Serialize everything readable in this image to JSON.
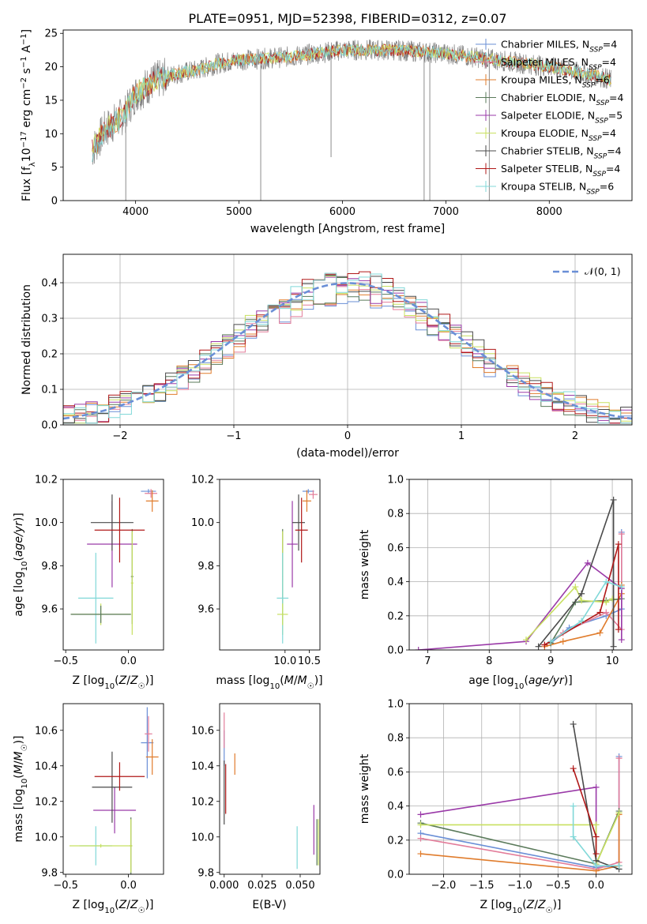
{
  "colors": {
    "Chabrier MILES": "#6a8fd6",
    "Salpeter MILES": "#e37d9a",
    "Kroupa MILES": "#e07c2c",
    "Chabrier ELODIE": "#5a7a5a",
    "Salpeter ELODIE": "#9a3aa8",
    "Kroupa ELODIE": "#c8e060",
    "Chabrier STELIB": "#4a4a4a",
    "Salpeter STELIB": "#b01818",
    "Kroupa STELIB": "#80d8d8",
    "data": "#808080",
    "gauss": "#6a8fd6",
    "grid": "#b0b0b0"
  },
  "chart_data": [
    {
      "id": "spectrum",
      "type": "line",
      "title": "PLATE=0951, MJD=52398, FIBERID=0312, z=0.07",
      "xlabel": "wavelength [Angstrom, rest frame]",
      "ylabel": "Flux [f_λ 10^-17 erg cm^-2 s^-1 A^-1]",
      "xlim": [
        3300,
        8800
      ],
      "ylim": [
        0,
        25.5
      ],
      "xticks": [
        "4000",
        "5000",
        "6000",
        "7000",
        "8000"
      ],
      "yticks": [
        "0",
        "5",
        "10",
        "15",
        "20",
        "25"
      ],
      "legend": [
        {
          "name": "Chabrier MILES",
          "nssp": "4"
        },
        {
          "name": "Salpeter MILES",
          "nssp": "4"
        },
        {
          "name": "Kroupa MILES",
          "nssp": "6"
        },
        {
          "name": "Chabrier ELODIE",
          "nssp": "4"
        },
        {
          "name": "Salpeter ELODIE",
          "nssp": "5"
        },
        {
          "name": "Kroupa ELODIE",
          "nssp": "4"
        },
        {
          "name": "Chabrier STELIB",
          "nssp": "4"
        },
        {
          "name": "Salpeter STELIB",
          "nssp": "4"
        },
        {
          "name": "Kroupa STELIB",
          "nssp": "6"
        }
      ],
      "legend_loc": "right",
      "continuum_knots": [
        [
          3580,
          7.5
        ],
        [
          3700,
          10.5
        ],
        [
          3900,
          13
        ],
        [
          4000,
          16
        ],
        [
          4200,
          18
        ],
        [
          4400,
          19
        ],
        [
          4600,
          19.5
        ],
        [
          4800,
          20.5
        ],
        [
          5000,
          21
        ],
        [
          5500,
          21.5
        ],
        [
          6000,
          22.5
        ],
        [
          6500,
          22.5
        ],
        [
          7000,
          22
        ],
        [
          7500,
          21
        ],
        [
          8000,
          20
        ],
        [
          8500,
          18.5
        ],
        [
          8600,
          18
        ]
      ],
      "spikes": [
        [
          3905,
          0
        ],
        [
          5210,
          0
        ],
        [
          5890,
          6.5
        ],
        [
          6790,
          0
        ],
        [
          6845,
          0
        ],
        [
          7420,
          0
        ]
      ]
    },
    {
      "id": "residuals",
      "type": "histogram",
      "xlabel": "(data-model)/error",
      "ylabel": "Normed distribution",
      "xlim": [
        -2.5,
        2.5
      ],
      "ylim": [
        0,
        0.48
      ],
      "xticks": [
        "−2",
        "−1",
        "0",
        "1",
        "2"
      ],
      "yticks": [
        "0.0",
        "0.1",
        "0.2",
        "0.3",
        "0.4"
      ],
      "grid": true,
      "legend": "𝒩(0, 1)",
      "legend_loc": "top-right",
      "bin_width": 0.1
    },
    {
      "id": "age_vs_Z",
      "type": "errorbar",
      "xlabel": "Z [log10(Z/Z☉)]",
      "ylabel": "age  [log10(age/yr)]",
      "xlim": [
        -0.52,
        0.28
      ],
      "ylim": [
        9.41,
        10.2
      ],
      "xticks": [
        "−0.5",
        "0.0"
      ],
      "yticks": [
        "9.6",
        "9.8",
        "10.0",
        "10.2"
      ],
      "points": [
        {
          "s": "Chabrier MILES",
          "x": 0.16,
          "y": 10.145,
          "xe": 0.06,
          "ye": 0.01
        },
        {
          "s": "Salpeter MILES",
          "x": 0.18,
          "y": 10.135,
          "xe": 0.05,
          "ye": 0.02
        },
        {
          "s": "Kroupa MILES",
          "x": 0.19,
          "y": 10.1,
          "xe": 0.05,
          "ye": 0.05
        },
        {
          "s": "Chabrier ELODIE",
          "x": 0.03,
          "y": 9.75,
          "xe": 0.01,
          "ye": 0.22
        },
        {
          "s": "Salpeter ELODIE",
          "x": -0.13,
          "y": 9.9,
          "xe": 0.2,
          "ye": 0.2
        },
        {
          "s": "Kroupa ELODIE",
          "x": 0.03,
          "y": 9.72,
          "xe": 0.01,
          "ye": 0.24
        },
        {
          "s": "Chabrier STELIB",
          "x": -0.13,
          "y": 10.0,
          "xe": 0.17,
          "ye": 0.13
        },
        {
          "s": "Salpeter STELIB",
          "x": -0.07,
          "y": 9.965,
          "xe": 0.2,
          "ye": 0.15
        },
        {
          "s": "Kroupa STELIB",
          "x": -0.26,
          "y": 9.65,
          "xe": 0.14,
          "ye": 0.21
        },
        {
          "s": "Kroupa ELODIE",
          "x": -0.22,
          "y": 9.575,
          "xe": 0.24,
          "ye": 0.05
        },
        {
          "s": "Chabrier ELODIE",
          "x": -0.22,
          "y": 9.575,
          "xe": 0.24,
          "ye": 0.04
        }
      ]
    },
    {
      "id": "age_vs_mass",
      "type": "errorbar",
      "xlabel": "mass [log10(M/M☉)]",
      "ylabel": "",
      "xlim": [
        8.65,
        10.72
      ],
      "ylim": [
        9.41,
        10.2
      ],
      "xticks": [
        "10.0",
        "10.5"
      ],
      "yticks": [
        "9.6",
        "9.8",
        "10.0",
        "10.2"
      ],
      "points": [
        {
          "s": "Chabrier MILES",
          "x": 10.48,
          "y": 10.145,
          "xe": 0.12,
          "ye": 0.01
        },
        {
          "s": "Salpeter MILES",
          "x": 10.58,
          "y": 10.13,
          "xe": 0.09,
          "ye": 0.02
        },
        {
          "s": "Kroupa MILES",
          "x": 10.45,
          "y": 10.1,
          "xe": 0.09,
          "ye": 0.05
        },
        {
          "s": "Chabrier ELODIE",
          "x": 9.95,
          "y": 9.75,
          "xe": 0.01,
          "ye": 0.22
        },
        {
          "s": "Salpeter ELODIE",
          "x": 10.15,
          "y": 9.9,
          "xe": 0.11,
          "ye": 0.2
        },
        {
          "s": "Kroupa ELODIE",
          "x": 9.95,
          "y": 9.72,
          "xe": 0.01,
          "ye": 0.24
        },
        {
          "s": "Chabrier STELIB",
          "x": 10.28,
          "y": 10.0,
          "xe": 0.13,
          "ye": 0.13
        },
        {
          "s": "Salpeter STELIB",
          "x": 10.34,
          "y": 9.965,
          "xe": 0.13,
          "ye": 0.15
        },
        {
          "s": "Kroupa STELIB",
          "x": 9.95,
          "y": 9.65,
          "xe": 0.12,
          "ye": 0.21
        },
        {
          "s": "Kroupa ELODIE",
          "x": 9.95,
          "y": 9.575,
          "xe": 0.11,
          "ye": 0.05
        }
      ]
    },
    {
      "id": "weight_vs_age",
      "type": "line",
      "xlabel": "age  [log10(age/yr)]",
      "ylabel": "mass weight",
      "xlim": [
        6.7,
        10.32
      ],
      "ylim": [
        0,
        1.0
      ],
      "xticks": [
        "7",
        "8",
        "9",
        "10"
      ],
      "yticks": [
        "0.0",
        "0.2",
        "0.4",
        "0.6",
        "0.8",
        "1.0"
      ],
      "grid": true,
      "series": [
        {
          "name": "Chabrier MILES",
          "x": [
            9.0,
            9.3,
            9.9,
            10.15,
            10.15
          ],
          "y": [
            0.04,
            0.13,
            0.2,
            0.24,
            0.69
          ]
        },
        {
          "name": "Salpeter MILES",
          "x": [
            8.9,
            9.2,
            9.9,
            10.15,
            10.15
          ],
          "y": [
            0.03,
            0.1,
            0.22,
            0.12,
            0.68
          ]
        },
        {
          "name": "Kroupa MILES",
          "x": [
            8.9,
            9.2,
            9.8,
            10.15,
            10.15
          ],
          "y": [
            0.02,
            0.05,
            0.1,
            0.33,
            0.38
          ]
        },
        {
          "name": "Chabrier ELODIE",
          "x": [
            9.0,
            9.4,
            9.9,
            10.15
          ],
          "y": [
            0.04,
            0.28,
            0.29,
            0.3
          ]
        },
        {
          "name": "Salpeter ELODIE",
          "x": [
            6.85,
            8.6,
            9.6,
            10.15,
            10.15
          ],
          "y": [
            0.0,
            0.05,
            0.51,
            0.36,
            0.06
          ]
        },
        {
          "name": "Kroupa ELODIE",
          "x": [
            8.6,
            9.4,
            9.5,
            9.9,
            10.0
          ],
          "y": [
            0.06,
            0.37,
            0.29,
            0.28,
            0.3
          ]
        },
        {
          "name": "Chabrier STELIB",
          "x": [
            8.8,
            9.5,
            10.02,
            10.02
          ],
          "y": [
            0.02,
            0.33,
            0.88,
            0.02
          ]
        },
        {
          "name": "Salpeter STELIB",
          "x": [
            8.9,
            9.8,
            10.1,
            10.1
          ],
          "y": [
            0.03,
            0.22,
            0.62,
            0.12
          ]
        },
        {
          "name": "Kroupa STELIB",
          "x": [
            9.0,
            9.5,
            9.9,
            10.15
          ],
          "y": [
            0.05,
            0.17,
            0.4,
            0.37
          ]
        }
      ]
    },
    {
      "id": "mass_vs_Z",
      "type": "errorbar",
      "xlabel": "Z [log10(Z/Z☉)]",
      "ylabel": "mass [log10(M/M☉)]",
      "xlim": [
        -0.52,
        0.28
      ],
      "ylim": [
        9.79,
        10.75
      ],
      "xticks": [
        "−0.5",
        "0.0"
      ],
      "yticks": [
        "9.8",
        "10.0",
        "10.2",
        "10.4",
        "10.6"
      ],
      "points": [
        {
          "s": "Chabrier MILES",
          "x": 0.15,
          "y": 10.53,
          "xe": 0.05,
          "ye": 0.2
        },
        {
          "s": "Salpeter MILES",
          "x": 0.16,
          "y": 10.58,
          "xe": 0.03,
          "ye": 0.1
        },
        {
          "s": "Kroupa MILES",
          "x": 0.19,
          "y": 10.45,
          "xe": 0.05,
          "ye": 0.1
        },
        {
          "s": "Chabrier ELODIE",
          "x": 0.02,
          "y": 9.95,
          "xe": 0.01,
          "ye": 0.16
        },
        {
          "s": "Salpeter ELODIE",
          "x": -0.11,
          "y": 10.15,
          "xe": 0.17,
          "ye": 0.13
        },
        {
          "s": "Kroupa ELODIE",
          "x": 0.02,
          "y": 9.95,
          "xe": 0.01,
          "ye": 0.15
        },
        {
          "s": "Chabrier STELIB",
          "x": -0.13,
          "y": 10.28,
          "xe": 0.16,
          "ye": 0.2
        },
        {
          "s": "Salpeter STELIB",
          "x": -0.07,
          "y": 10.34,
          "xe": 0.2,
          "ye": 0.08
        },
        {
          "s": "Kroupa STELIB",
          "x": -0.26,
          "y": 9.95,
          "xe": 0.13,
          "ye": 0.11
        },
        {
          "s": "Kroupa ELODIE",
          "x": -0.22,
          "y": 9.95,
          "xe": 0.25,
          "ye": 0.01
        }
      ]
    },
    {
      "id": "mass_vs_ebv",
      "type": "errorbar",
      "xlabel": "E(B-V)",
      "ylabel": "",
      "xlim": [
        -0.003,
        0.063
      ],
      "ylim": [
        9.79,
        10.75
      ],
      "xticks": [
        "0.000",
        "0.025",
        "0.050"
      ],
      "yticks": [
        "9.8",
        "10.0",
        "10.2",
        "10.4",
        "10.6"
      ],
      "points": [
        {
          "s": "Chabrier MILES",
          "x": 0.0,
          "y": 10.5,
          "xe": 0,
          "ye": 0.1
        },
        {
          "s": "Salpeter MILES",
          "x": 0.0,
          "y": 10.6,
          "xe": 0,
          "ye": 0.1
        },
        {
          "s": "Kroupa MILES",
          "x": 0.007,
          "y": 10.41,
          "xe": 0,
          "ye": 0.06
        },
        {
          "s": "Chabrier STELIB",
          "x": 0.0,
          "y": 10.25,
          "xe": 0,
          "ye": 0.18
        },
        {
          "s": "Salpeter STELIB",
          "x": 0.001,
          "y": 10.27,
          "xe": 0,
          "ye": 0.14
        },
        {
          "s": "Kroupa STELIB",
          "x": 0.048,
          "y": 9.94,
          "xe": 0,
          "ye": 0.12
        },
        {
          "s": "Salpeter ELODIE",
          "x": 0.059,
          "y": 10.04,
          "xe": 0,
          "ye": 0.14
        },
        {
          "s": "Chabrier ELODIE",
          "x": 0.061,
          "y": 9.97,
          "xe": 0,
          "ye": 0.13
        },
        {
          "s": "Kroupa ELODIE",
          "x": 0.062,
          "y": 9.97,
          "xe": 0,
          "ye": 0.13
        }
      ]
    },
    {
      "id": "weight_vs_Z",
      "type": "line",
      "xlabel": "Z [log10(Z/Z☉)]",
      "ylabel": "mass weight",
      "xlim": [
        -2.45,
        0.47
      ],
      "ylim": [
        0,
        1.0
      ],
      "xticks": [
        "−2.0",
        "−1.5",
        "−1.0",
        "−0.5",
        "0.0"
      ],
      "yticks": [
        "0.0",
        "0.2",
        "0.4",
        "0.6",
        "0.8",
        "1.0"
      ],
      "grid": true,
      "series": [
        {
          "name": "Chabrier MILES",
          "x": [
            -2.3,
            0.0,
            0.3,
            0.3
          ],
          "y": [
            0.24,
            0.04,
            0.05,
            0.69
          ]
        },
        {
          "name": "Salpeter MILES",
          "x": [
            -2.3,
            0.0,
            0.3,
            0.3
          ],
          "y": [
            0.21,
            0.03,
            0.07,
            0.68
          ]
        },
        {
          "name": "Kroupa MILES",
          "x": [
            -2.3,
            0.0,
            0.3,
            0.3
          ],
          "y": [
            0.12,
            0.02,
            0.05,
            0.35
          ]
        },
        {
          "name": "Chabrier ELODIE",
          "x": [
            -2.3,
            0.0,
            0.3
          ],
          "y": [
            0.3,
            0.06,
            0.37
          ]
        },
        {
          "name": "Salpeter ELODIE",
          "x": [
            -2.3,
            0.0,
            0.0
          ],
          "y": [
            0.35,
            0.51,
            0.06
          ]
        },
        {
          "name": "Kroupa ELODIE",
          "x": [
            -2.3,
            0.0,
            0.0,
            0.3
          ],
          "y": [
            0.29,
            0.29,
            0.06,
            0.36
          ]
        },
        {
          "name": "Chabrier STELIB",
          "x": [
            -0.3,
            0.0,
            0.3
          ],
          "y": [
            0.88,
            0.08,
            0.03
          ]
        },
        {
          "name": "Salpeter STELIB",
          "x": [
            -0.3,
            0.0,
            0.0
          ],
          "y": [
            0.62,
            0.22,
            0.12
          ]
        },
        {
          "name": "Kroupa STELIB",
          "x": [
            -0.3,
            -0.3,
            0.0,
            0.3
          ],
          "y": [
            0.4,
            0.22,
            0.05,
            0.05
          ]
        }
      ]
    }
  ]
}
